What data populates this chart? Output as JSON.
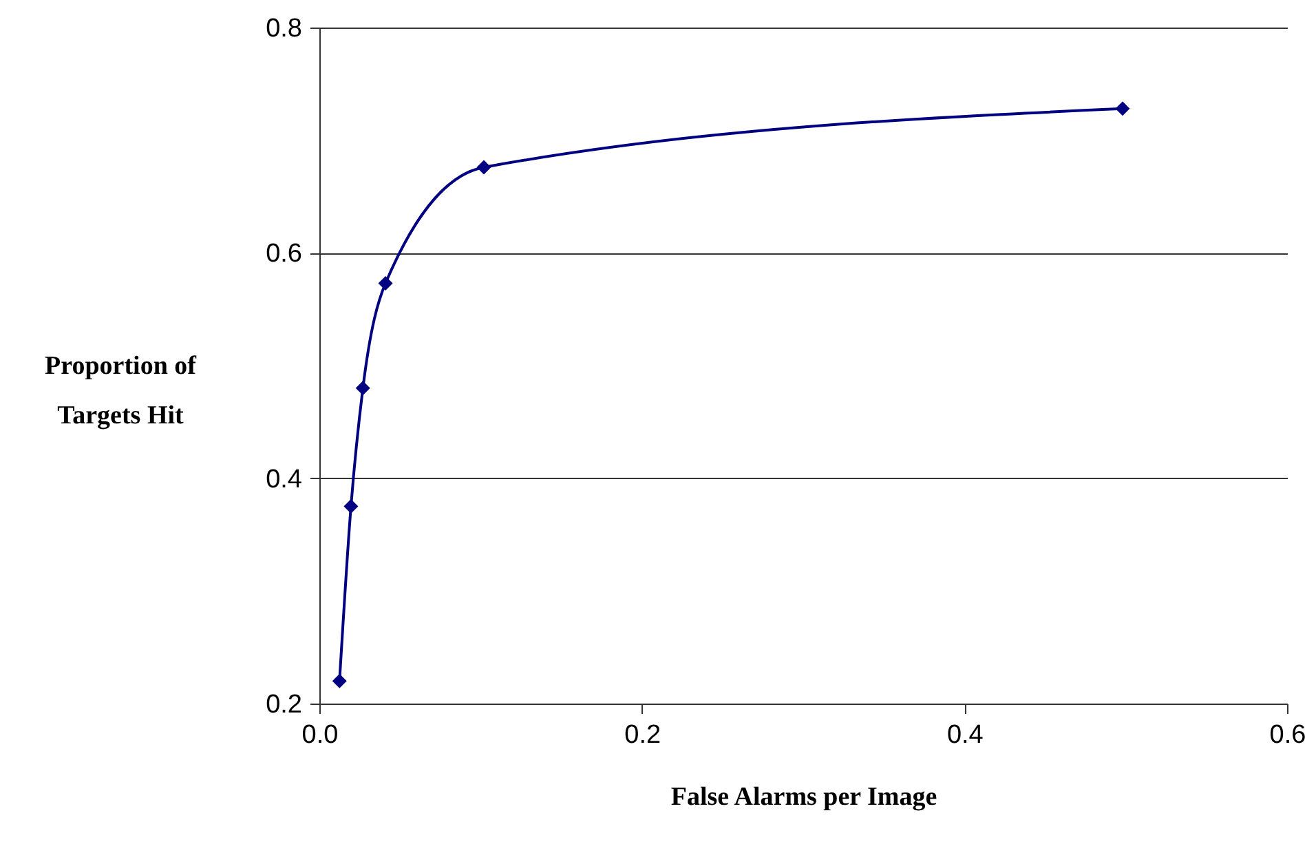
{
  "chart_data": {
    "type": "line",
    "xlabel": "False Alarms per Image",
    "ylabel": "Proportion of\nTargets Hit",
    "x": [
      0.0125,
      0.0196,
      0.027,
      0.041,
      0.102,
      0.498
    ],
    "series": [
      {
        "color": "#000080",
        "values": [
          0.22,
          0.375,
          0.48,
          0.573,
          0.676,
          0.728
        ]
      }
    ],
    "xlim": [
      0,
      0.6
    ],
    "xticks": [
      {
        "value": 0,
        "label": "0.0"
      },
      0.2,
      0.4,
      0.6
    ],
    "ylim": [
      0.2,
      0.8
    ],
    "yticks": [
      0.2,
      0.4,
      0.6,
      0.8
    ],
    "grid": "y",
    "marker": "diamond",
    "line_style": "solid"
  }
}
